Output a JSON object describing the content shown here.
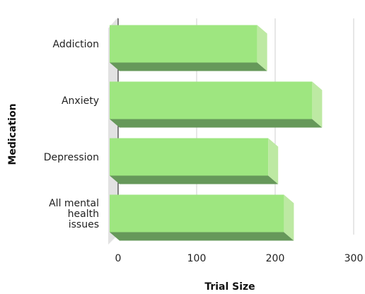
{
  "chart_data": {
    "type": "bar",
    "orientation": "horizontal",
    "three_d": true,
    "title": "",
    "xlabel": "Trial Size",
    "ylabel": "Medication",
    "categories": [
      "Addiction",
      "Anxiety",
      "Depression",
      "All mental health issues"
    ],
    "category_lines": [
      [
        "Addiction"
      ],
      [
        "Anxiety"
      ],
      [
        "Depression"
      ],
      [
        "All mental",
        "health",
        "issues"
      ]
    ],
    "values": [
      188,
      258,
      202,
      222
    ],
    "xlim": [
      0,
      300
    ],
    "xticks": [
      "0",
      "100",
      "200",
      "300"
    ],
    "grid": true,
    "legend": "none",
    "colors": {
      "bar_front": "#9ee680",
      "bar_side": "#bde9a3",
      "bar_bottom": "#66985a",
      "wall": "#e2e2e2",
      "grid": "#cfcfcf",
      "axis": "#111111"
    }
  }
}
